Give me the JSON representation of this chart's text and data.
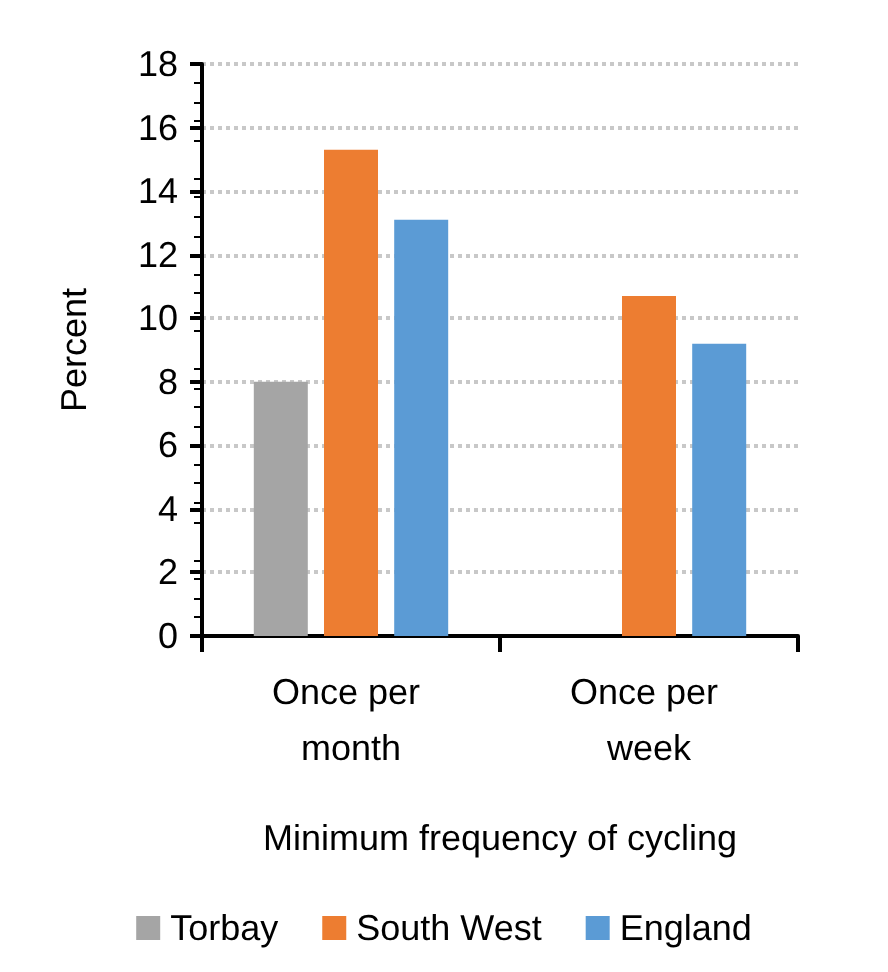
{
  "chart_data": {
    "type": "bar",
    "xlabel": "Minimum frequency of cycling",
    "ylabel": "Percent",
    "categories": [
      "Once per month",
      "Once per week"
    ],
    "series": [
      {
        "name": "Torbay",
        "color": "#a5a5a5",
        "values": [
          8.0,
          null
        ]
      },
      {
        "name": "South West",
        "color": "#ed7d31",
        "values": [
          15.3,
          10.7
        ]
      },
      {
        "name": "England",
        "color": "#5b9bd5",
        "values": [
          13.1,
          9.2
        ]
      }
    ],
    "ylim": [
      0,
      18
    ],
    "yticks": [
      0,
      2,
      4,
      6,
      8,
      10,
      12,
      14,
      16,
      18
    ],
    "grid": "y",
    "legend": "bottom"
  }
}
